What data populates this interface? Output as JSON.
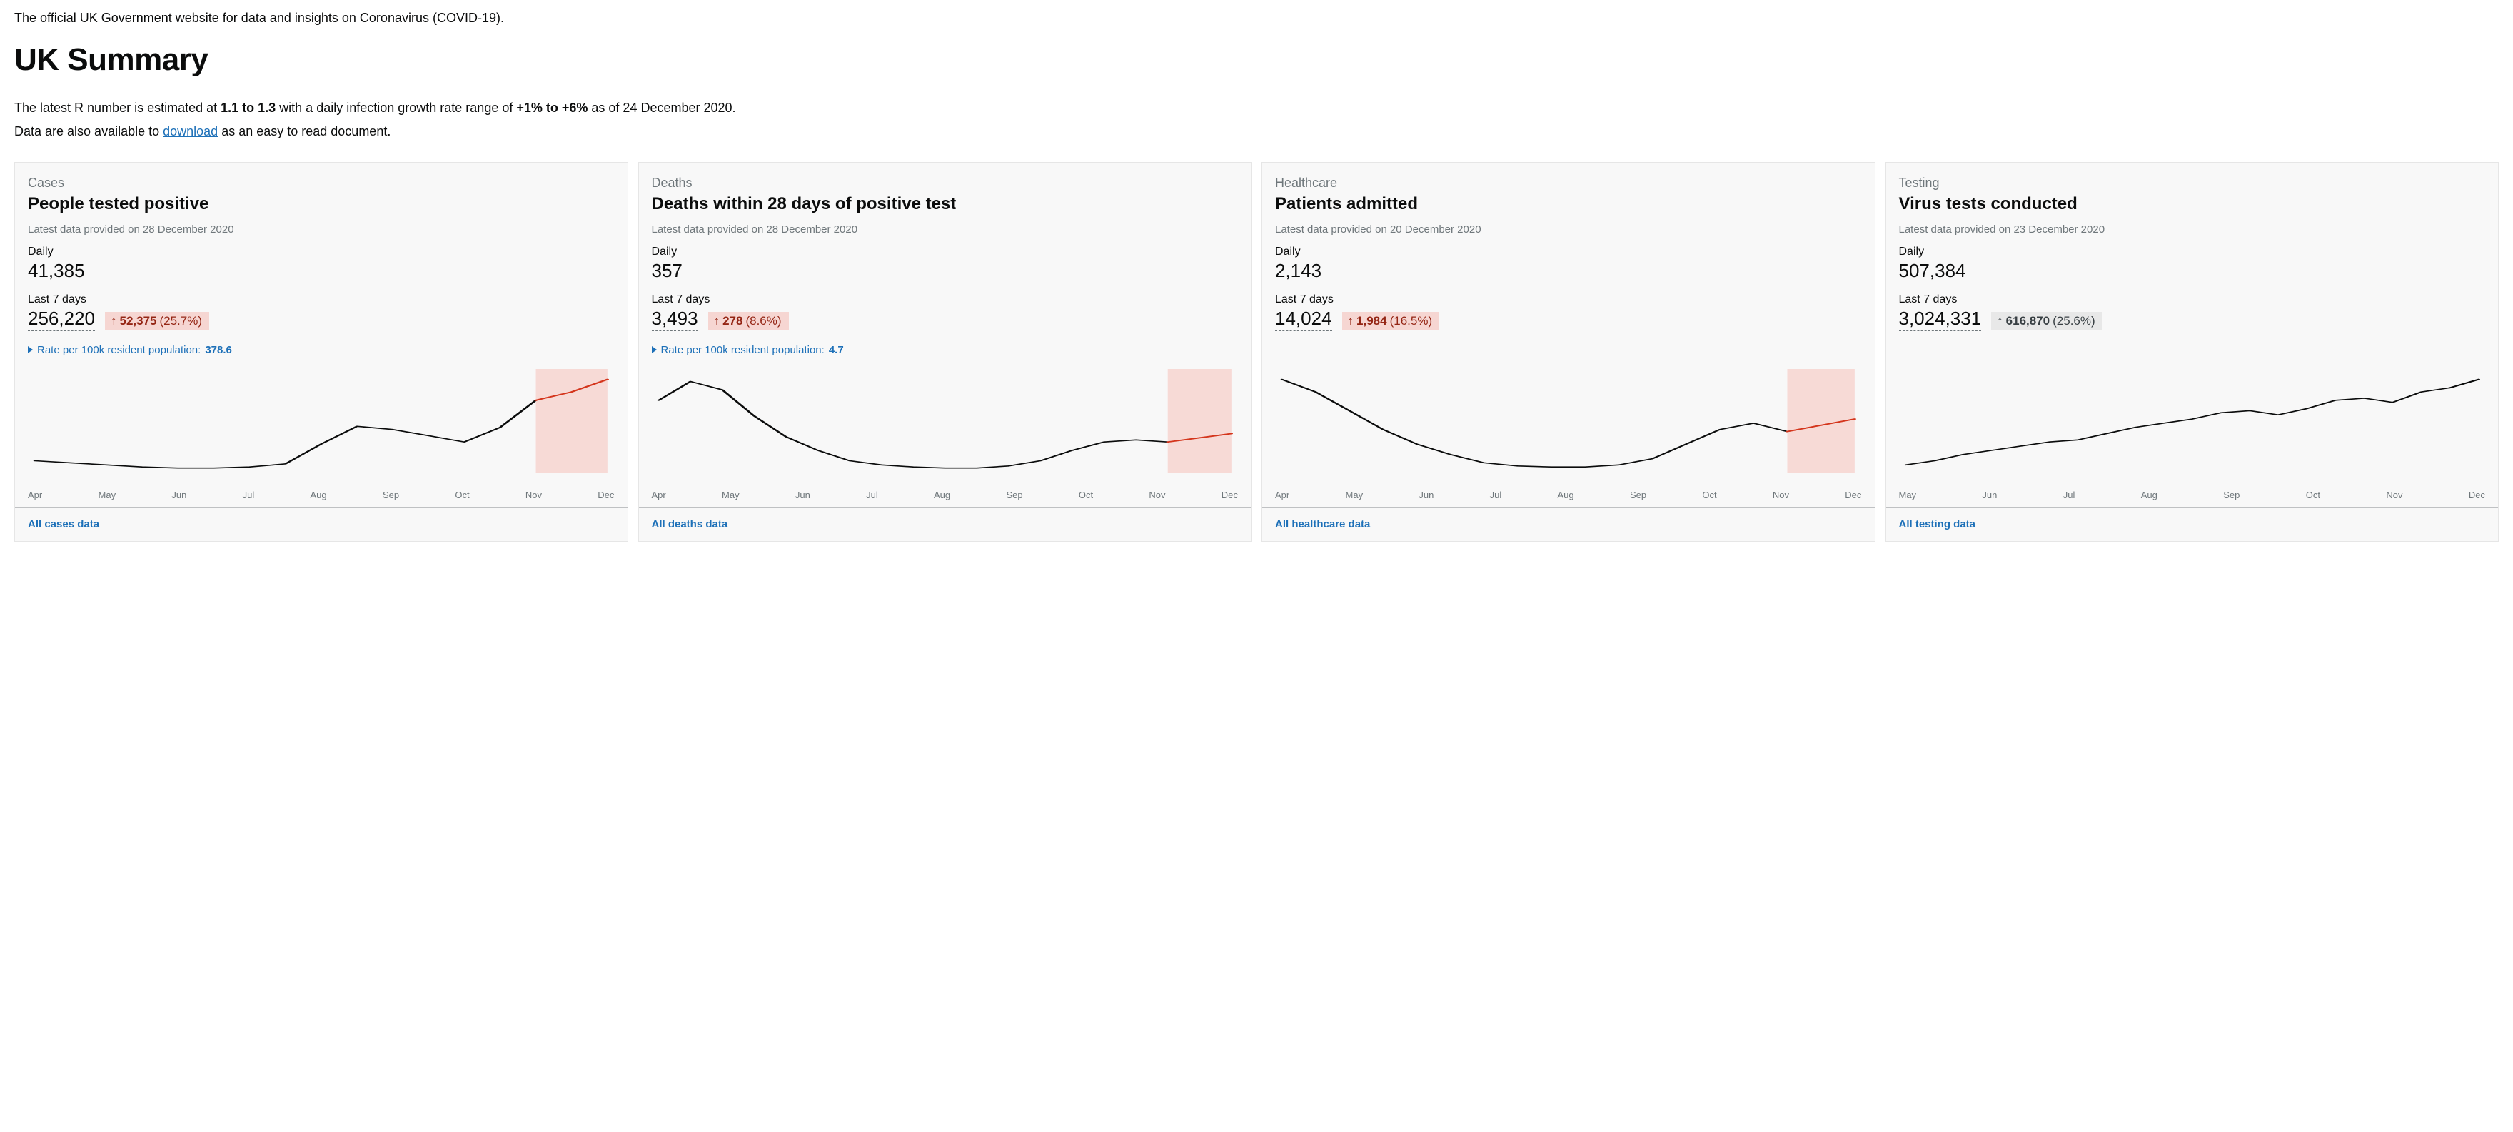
{
  "intro": "The official UK Government website for data and insights on Coronavirus (COVID-19).",
  "page_title": "UK Summary",
  "r_sentence": {
    "prefix": "The latest R number is estimated at ",
    "r_range": "1.1 to 1.3",
    "mid": " with a daily infection growth rate range of ",
    "growth_range": "+1% to +6%",
    "suffix": " as of 24 December 2020."
  },
  "download_sentence": {
    "prefix": "Data are also available to ",
    "link_text": "download",
    "suffix": " as an easy to read document."
  },
  "colors": {
    "card_bg": "#f8f8f8",
    "muted": "#6f777b",
    "link": "#1d70b8",
    "increase_bg": "#f6d6d2",
    "increase_fg": "#942514",
    "neutral_bg": "#e8e8e8",
    "neutral_fg": "#383f43",
    "line": "#0b0c0c",
    "recent_red": "#d4351c",
    "recent_fill": "#f6d6d2"
  },
  "cards": [
    {
      "category": "Cases",
      "title": "People tested positive",
      "latest": "Latest data provided on 28 December 2020",
      "daily_label": "Daily",
      "daily_value": "41,385",
      "last7_label": "Last 7 days",
      "last7_value": "256,220",
      "change_dir": "up",
      "change_value": "52,375",
      "change_pct": "(25.7%)",
      "rate_text": "Rate per 100k resident population:",
      "rate_value": "378.6",
      "footer_link": "All cases data",
      "chart": {
        "type": "line",
        "x_labels": [
          "Apr",
          "May",
          "Jun",
          "Jul",
          "Aug",
          "Sep",
          "Oct",
          "Nov",
          "Dec"
        ],
        "values": [
          12,
          10,
          8,
          6,
          5,
          5,
          6,
          9,
          28,
          45,
          42,
          36,
          30,
          44,
          70,
          78,
          90
        ],
        "ylim": [
          0,
          100
        ],
        "recent_tail_points": 3,
        "recent_highlight": true
      }
    },
    {
      "category": "Deaths",
      "title": "Deaths within 28 days of positive test",
      "latest": "Latest data provided on 28 December 2020",
      "daily_label": "Daily",
      "daily_value": "357",
      "last7_label": "Last 7 days",
      "last7_value": "3,493",
      "change_dir": "up",
      "change_value": "278",
      "change_pct": "(8.6%)",
      "rate_text": "Rate per 100k resident population:",
      "rate_value": "4.7",
      "footer_link": "All deaths data",
      "chart": {
        "type": "line",
        "x_labels": [
          "Apr",
          "May",
          "Jun",
          "Jul",
          "Aug",
          "Sep",
          "Oct",
          "Nov",
          "Dec"
        ],
        "values": [
          70,
          88,
          80,
          55,
          35,
          22,
          12,
          8,
          6,
          5,
          5,
          7,
          12,
          22,
          30,
          32,
          30,
          34,
          38
        ],
        "ylim": [
          0,
          100
        ],
        "recent_tail_points": 3,
        "recent_highlight": true
      }
    },
    {
      "category": "Healthcare",
      "title": "Patients admitted",
      "latest": "Latest data provided on 20 December 2020",
      "daily_label": "Daily",
      "daily_value": "2,143",
      "last7_label": "Last 7 days",
      "last7_value": "14,024",
      "change_dir": "up",
      "change_value": "1,984",
      "change_pct": "(16.5%)",
      "rate_text": null,
      "rate_value": null,
      "footer_link": "All healthcare data",
      "chart": {
        "type": "line",
        "x_labels": [
          "Apr",
          "May",
          "Jun",
          "Jul",
          "Aug",
          "Sep",
          "Oct",
          "Nov",
          "Dec"
        ],
        "values": [
          90,
          78,
          60,
          42,
          28,
          18,
          10,
          7,
          6,
          6,
          8,
          14,
          28,
          42,
          48,
          40,
          46,
          52
        ],
        "ylim": [
          0,
          100
        ],
        "recent_tail_points": 3,
        "recent_highlight": true
      }
    },
    {
      "category": "Testing",
      "title": "Virus tests conducted",
      "latest": "Latest data provided on 23 December 2020",
      "daily_label": "Daily",
      "daily_value": "507,384",
      "last7_label": "Last 7 days",
      "last7_value": "3,024,331",
      "change_dir": "neutral",
      "change_value": "616,870",
      "change_pct": "(25.6%)",
      "rate_text": null,
      "rate_value": null,
      "footer_link": "All testing data",
      "chart": {
        "type": "line",
        "x_labels": [
          "May",
          "Jun",
          "Jul",
          "Aug",
          "Sep",
          "Oct",
          "Nov",
          "Dec"
        ],
        "values": [
          8,
          12,
          18,
          22,
          26,
          30,
          32,
          38,
          44,
          48,
          52,
          58,
          60,
          56,
          62,
          70,
          72,
          68,
          78,
          82,
          90
        ],
        "ylim": [
          0,
          100
        ],
        "recent_tail_points": 2,
        "recent_highlight": false
      }
    }
  ]
}
